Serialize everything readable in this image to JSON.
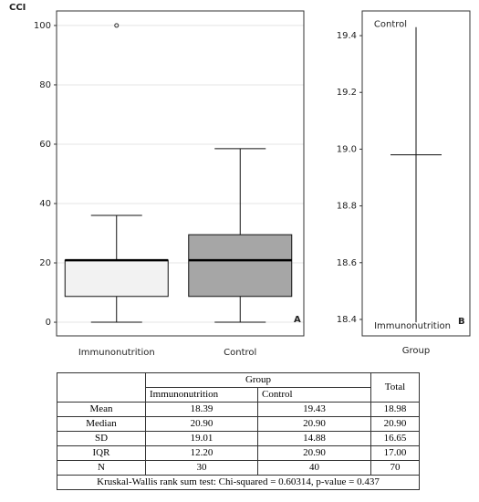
{
  "chart_data": [
    {
      "type": "box",
      "ylabel": "CCI",
      "panel": "A",
      "categories": [
        "Immunonutrition",
        "Control"
      ],
      "boxes": [
        {
          "low": 0,
          "q1": 8.7,
          "median": 20.9,
          "q3": 20.9,
          "high": 36,
          "outliers": [
            100
          ],
          "color": "#f2f2f2"
        },
        {
          "low": 0,
          "q1": 8.7,
          "median": 20.9,
          "q3": 29.5,
          "high": 58.5,
          "outliers": [],
          "color": "#a6a6a6"
        }
      ],
      "ylim": [
        -4.6,
        104.9
      ],
      "yticks": [
        0,
        20,
        40,
        60,
        80,
        100
      ],
      "grid": true
    },
    {
      "type": "means",
      "xlabel": "Group",
      "panel": "B",
      "points": [
        {
          "label": "Control",
          "value": 19.43
        },
        {
          "label": "Immunonutrition",
          "value": 18.39
        }
      ],
      "total": 18.98,
      "ylim": [
        18.342,
        19.487
      ],
      "yticks": [
        18.4,
        18.6,
        18.8,
        {
          "value": 19,
          "label": "19.0"
        },
        19.2,
        19.4
      ]
    }
  ],
  "table": {
    "group_header": "Group",
    "columns": [
      "Immunonutrition",
      "Control"
    ],
    "total_header": "Total",
    "rows": [
      [
        "Mean",
        "18.39",
        "19.43",
        "18.98"
      ],
      [
        "Median",
        "20.90",
        "20.90",
        "20.90"
      ],
      [
        "SD",
        "19.01",
        "14.88",
        "16.65"
      ],
      [
        "IQR",
        "12.20",
        "20.90",
        "17.00"
      ],
      [
        "N",
        "30",
        "40",
        "70"
      ]
    ],
    "footer": "Kruskal-Wallis rank sum test: Chi-squared = 0.60314, p-value = 0.437"
  }
}
